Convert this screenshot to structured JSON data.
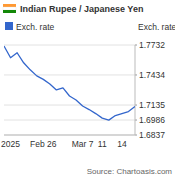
{
  "chart_data": {
    "type": "line",
    "title": "Indian Rupee / Japanese Yen",
    "y_label": "Exch. rate",
    "source": "Source: Chartoasis.com",
    "categories": [
      null,
      "2025",
      null,
      null,
      null,
      null,
      "Feb 26",
      null,
      null,
      null,
      null,
      null,
      "Mar 7",
      null,
      null,
      "11",
      null,
      null,
      "14",
      null,
      null
    ],
    "series": [
      {
        "name": "Exch. rate",
        "color": "#3366cc",
        "values": [
          1.7722,
          1.7605,
          1.7655,
          1.7555,
          1.7485,
          1.7425,
          1.739,
          1.7345,
          1.7285,
          1.7305,
          1.7225,
          1.7185,
          1.7125,
          1.709,
          1.705,
          1.7005,
          1.6985,
          1.703,
          1.705,
          1.707,
          1.712
        ]
      }
    ],
    "ylim": [
      1.6837,
      1.7732
    ],
    "yticks": [
      1.6837,
      1.6986,
      1.7135,
      1.7434,
      1.7732
    ],
    "grid": true,
    "legend": "top-left"
  }
}
